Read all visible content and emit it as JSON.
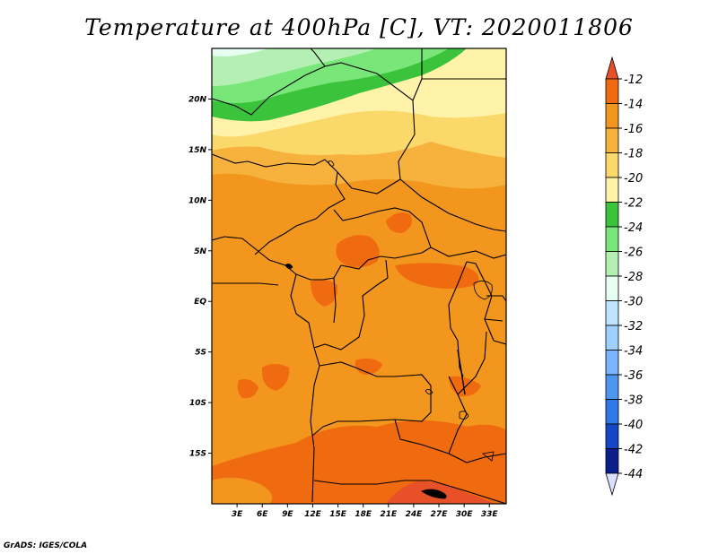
{
  "title": "Temperature at 400hPa [C], VT: 2020011806",
  "credit": "GrADS: IGES/COLA",
  "map": {
    "lon_range": [
      0,
      35
    ],
    "lat_range": [
      -20,
      25
    ],
    "lat_ticks": [
      {
        "lat": 20,
        "label": "20N"
      },
      {
        "lat": 15,
        "label": "15N"
      },
      {
        "lat": 10,
        "label": "10N"
      },
      {
        "lat": 5,
        "label": "5N"
      },
      {
        "lat": 0,
        "label": "EQ"
      },
      {
        "lat": -5,
        "label": "5S"
      },
      {
        "lat": -10,
        "label": "10S"
      },
      {
        "lat": -15,
        "label": "15S"
      }
    ],
    "lon_ticks": [
      {
        "lon": 3,
        "label": "3E"
      },
      {
        "lon": 6,
        "label": "6E"
      },
      {
        "lon": 9,
        "label": "9E"
      },
      {
        "lon": 12,
        "label": "12E"
      },
      {
        "lon": 15,
        "label": "15E"
      },
      {
        "lon": 18,
        "label": "18E"
      },
      {
        "lon": 21,
        "label": "21E"
      },
      {
        "lon": 24,
        "label": "24E"
      },
      {
        "lon": 27,
        "label": "27E"
      },
      {
        "lon": 30,
        "label": "30E"
      },
      {
        "lon": 33,
        "label": "33E"
      }
    ]
  },
  "colorbar": {
    "labels": [
      "-12",
      "-14",
      "-16",
      "-18",
      "-20",
      "-22",
      "-24",
      "-26",
      "-28",
      "-30",
      "-32",
      "-34",
      "-36",
      "-38",
      "-40",
      "-42",
      "-44"
    ],
    "colors": [
      "#e8502a",
      "#f06a10",
      "#f2961e",
      "#f6b23d",
      "#fbd86a",
      "#fff3aa",
      "#3cc33c",
      "#78e678",
      "#b4f0b4",
      "#e6fff0",
      "#bfe4ff",
      "#a0d0ff",
      "#78b4ff",
      "#4c96f0",
      "#2e78e8",
      "#1446c8",
      "#0a1e8c",
      "#1a0078",
      "#dce0ff"
    ]
  }
}
